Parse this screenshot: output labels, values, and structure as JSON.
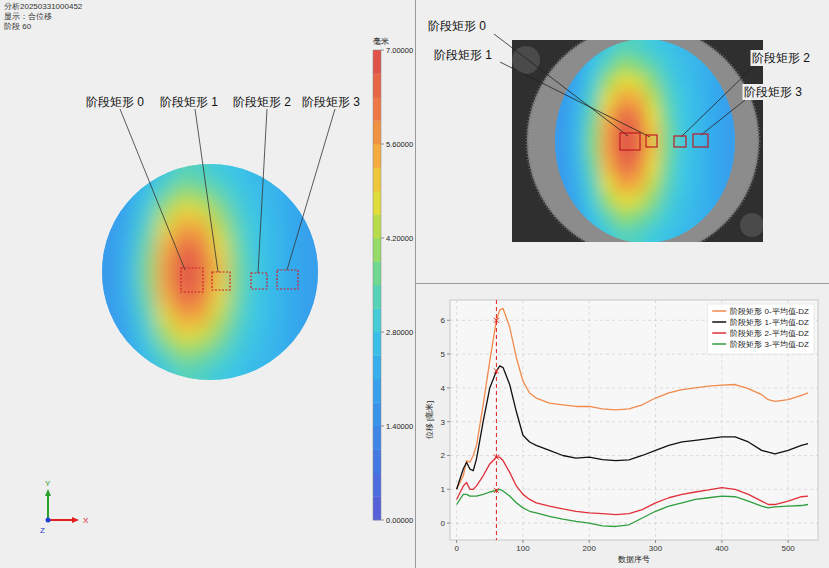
{
  "header": {
    "lines": [
      "分析20250331000452",
      "显示：合位移",
      "阶段 60"
    ]
  },
  "photo": {
    "annotations": [
      "阶段矩形 0",
      "阶段矩形 1",
      "阶段矩形 2",
      "阶段矩形 3"
    ]
  },
  "chart_data": [
    {
      "type": "heatmap",
      "annotations": [
        "阶段矩形 0",
        "阶段矩形 1",
        "阶段矩形 2",
        "阶段矩形 3"
      ],
      "axis_triad": [
        "X",
        "Y",
        "Z"
      ],
      "cells": [
        [
          1.7,
          2.0,
          2.4,
          2.9,
          3.3,
          3.2,
          2.9,
          2.7,
          2.5,
          2.4,
          2.2,
          1.9
        ],
        [
          1.7,
          2.1,
          2.7,
          3.4,
          4.0,
          3.8,
          3.4,
          2.9,
          2.6,
          2.4,
          2.2,
          1.9
        ],
        [
          1.7,
          2.2,
          3.0,
          4.1,
          4.8,
          4.6,
          3.9,
          3.1,
          2.7,
          2.4,
          2.2,
          1.9
        ],
        [
          1.8,
          2.3,
          3.3,
          4.7,
          5.6,
          5.4,
          4.4,
          3.4,
          2.8,
          2.5,
          2.2,
          1.9
        ],
        [
          1.8,
          2.4,
          3.6,
          5.3,
          6.4,
          6.0,
          4.8,
          3.6,
          2.8,
          2.5,
          2.2,
          1.9
        ],
        [
          1.8,
          2.5,
          3.8,
          5.6,
          6.8,
          6.4,
          5.1,
          3.7,
          2.9,
          2.5,
          2.2,
          1.9
        ],
        [
          1.8,
          2.5,
          3.8,
          5.6,
          6.8,
          6.4,
          5.1,
          3.7,
          2.9,
          2.5,
          2.2,
          1.9
        ],
        [
          1.8,
          2.4,
          3.6,
          5.3,
          6.4,
          6.0,
          4.8,
          3.6,
          2.8,
          2.5,
          2.2,
          1.9
        ],
        [
          1.8,
          2.3,
          3.3,
          4.7,
          5.6,
          5.4,
          4.4,
          3.4,
          2.8,
          2.5,
          2.2,
          1.9
        ],
        [
          1.7,
          2.2,
          3.0,
          4.1,
          4.8,
          4.6,
          3.9,
          3.1,
          2.7,
          2.4,
          2.2,
          1.9
        ],
        [
          1.7,
          2.1,
          2.7,
          3.4,
          4.0,
          3.8,
          3.4,
          2.9,
          2.6,
          2.4,
          2.2,
          1.9
        ],
        [
          1.7,
          2.0,
          2.4,
          2.9,
          3.3,
          3.2,
          2.9,
          2.7,
          2.5,
          2.4,
          2.2,
          1.9
        ]
      ],
      "colorbar": {
        "label": "毫米",
        "range": [
          0,
          7
        ],
        "ticks": [
          {
            "value": 0,
            "label": "0.00000"
          },
          {
            "value": 1.4,
            "label": "1.40000"
          },
          {
            "value": 2.8,
            "label": "2.80000"
          },
          {
            "value": 4.2,
            "label": "4.20000"
          },
          {
            "value": 5.6,
            "label": "5.60000"
          },
          {
            "value": 7,
            "label": "7.00000"
          }
        ]
      }
    },
    {
      "type": "line",
      "xlabel": "数据序号",
      "ylabel": "位移 [毫米]",
      "x": [
        0,
        10,
        15,
        20,
        25,
        30,
        40,
        50,
        60,
        65,
        70,
        80,
        90,
        100,
        110,
        120,
        140,
        160,
        180,
        200,
        220,
        240,
        260,
        280,
        300,
        320,
        340,
        360,
        380,
        400,
        420,
        440,
        460,
        470,
        480,
        500,
        520,
        530
      ],
      "series": [
        {
          "name": "阶段矩形 0-平均值-DZ",
          "color": "#f28a4c",
          "values": [
            1.0,
            1.4,
            1.85,
            1.8,
            2.0,
            2.3,
            3.5,
            4.8,
            6.0,
            6.3,
            6.35,
            5.8,
            4.9,
            4.2,
            3.85,
            3.7,
            3.55,
            3.5,
            3.45,
            3.45,
            3.38,
            3.35,
            3.38,
            3.5,
            3.7,
            3.85,
            3.95,
            4.0,
            4.05,
            4.08,
            4.1,
            3.98,
            3.8,
            3.65,
            3.6,
            3.65,
            3.78,
            3.85
          ]
        },
        {
          "name": "阶段矩形 1-平均值-DZ",
          "color": "#111111",
          "values": [
            1.0,
            1.6,
            1.8,
            1.6,
            1.55,
            1.9,
            3.0,
            4.0,
            4.5,
            4.65,
            4.6,
            4.1,
            3.3,
            2.6,
            2.4,
            2.3,
            2.15,
            2.0,
            1.92,
            1.95,
            1.88,
            1.85,
            1.87,
            2.0,
            2.15,
            2.3,
            2.4,
            2.45,
            2.5,
            2.55,
            2.55,
            2.4,
            2.15,
            2.1,
            2.05,
            2.15,
            2.3,
            2.35
          ]
        },
        {
          "name": "阶段矩形 2-平均值-DZ",
          "color": "#e0303a",
          "values": [
            0.7,
            1.1,
            1.2,
            1.0,
            1.0,
            1.1,
            1.4,
            1.75,
            1.95,
            1.95,
            1.85,
            1.5,
            1.1,
            0.85,
            0.7,
            0.6,
            0.5,
            0.42,
            0.35,
            0.3,
            0.28,
            0.25,
            0.28,
            0.4,
            0.6,
            0.75,
            0.85,
            0.92,
            0.98,
            1.05,
            1.0,
            0.85,
            0.65,
            0.55,
            0.55,
            0.65,
            0.78,
            0.8
          ]
        },
        {
          "name": "阶段矩形 3-平均值-DZ",
          "color": "#2e9e3e",
          "values": [
            0.55,
            0.85,
            0.85,
            0.8,
            0.8,
            0.8,
            0.85,
            0.92,
            0.97,
            1.0,
            0.95,
            0.8,
            0.6,
            0.45,
            0.35,
            0.3,
            0.2,
            0.12,
            0.05,
            0.0,
            -0.08,
            -0.1,
            -0.05,
            0.15,
            0.35,
            0.5,
            0.6,
            0.7,
            0.75,
            0.8,
            0.78,
            0.65,
            0.5,
            0.45,
            0.48,
            0.5,
            0.52,
            0.55
          ]
        }
      ],
      "xlim": [
        -10,
        545
      ],
      "ylim": [
        -0.5,
        6.6
      ],
      "xticks": [
        0,
        100,
        200,
        300,
        400,
        500
      ],
      "yticks": [
        0,
        1,
        2,
        3,
        4,
        5,
        6
      ],
      "grid": true,
      "legend": "upper right",
      "cursor_x": 60
    }
  ]
}
